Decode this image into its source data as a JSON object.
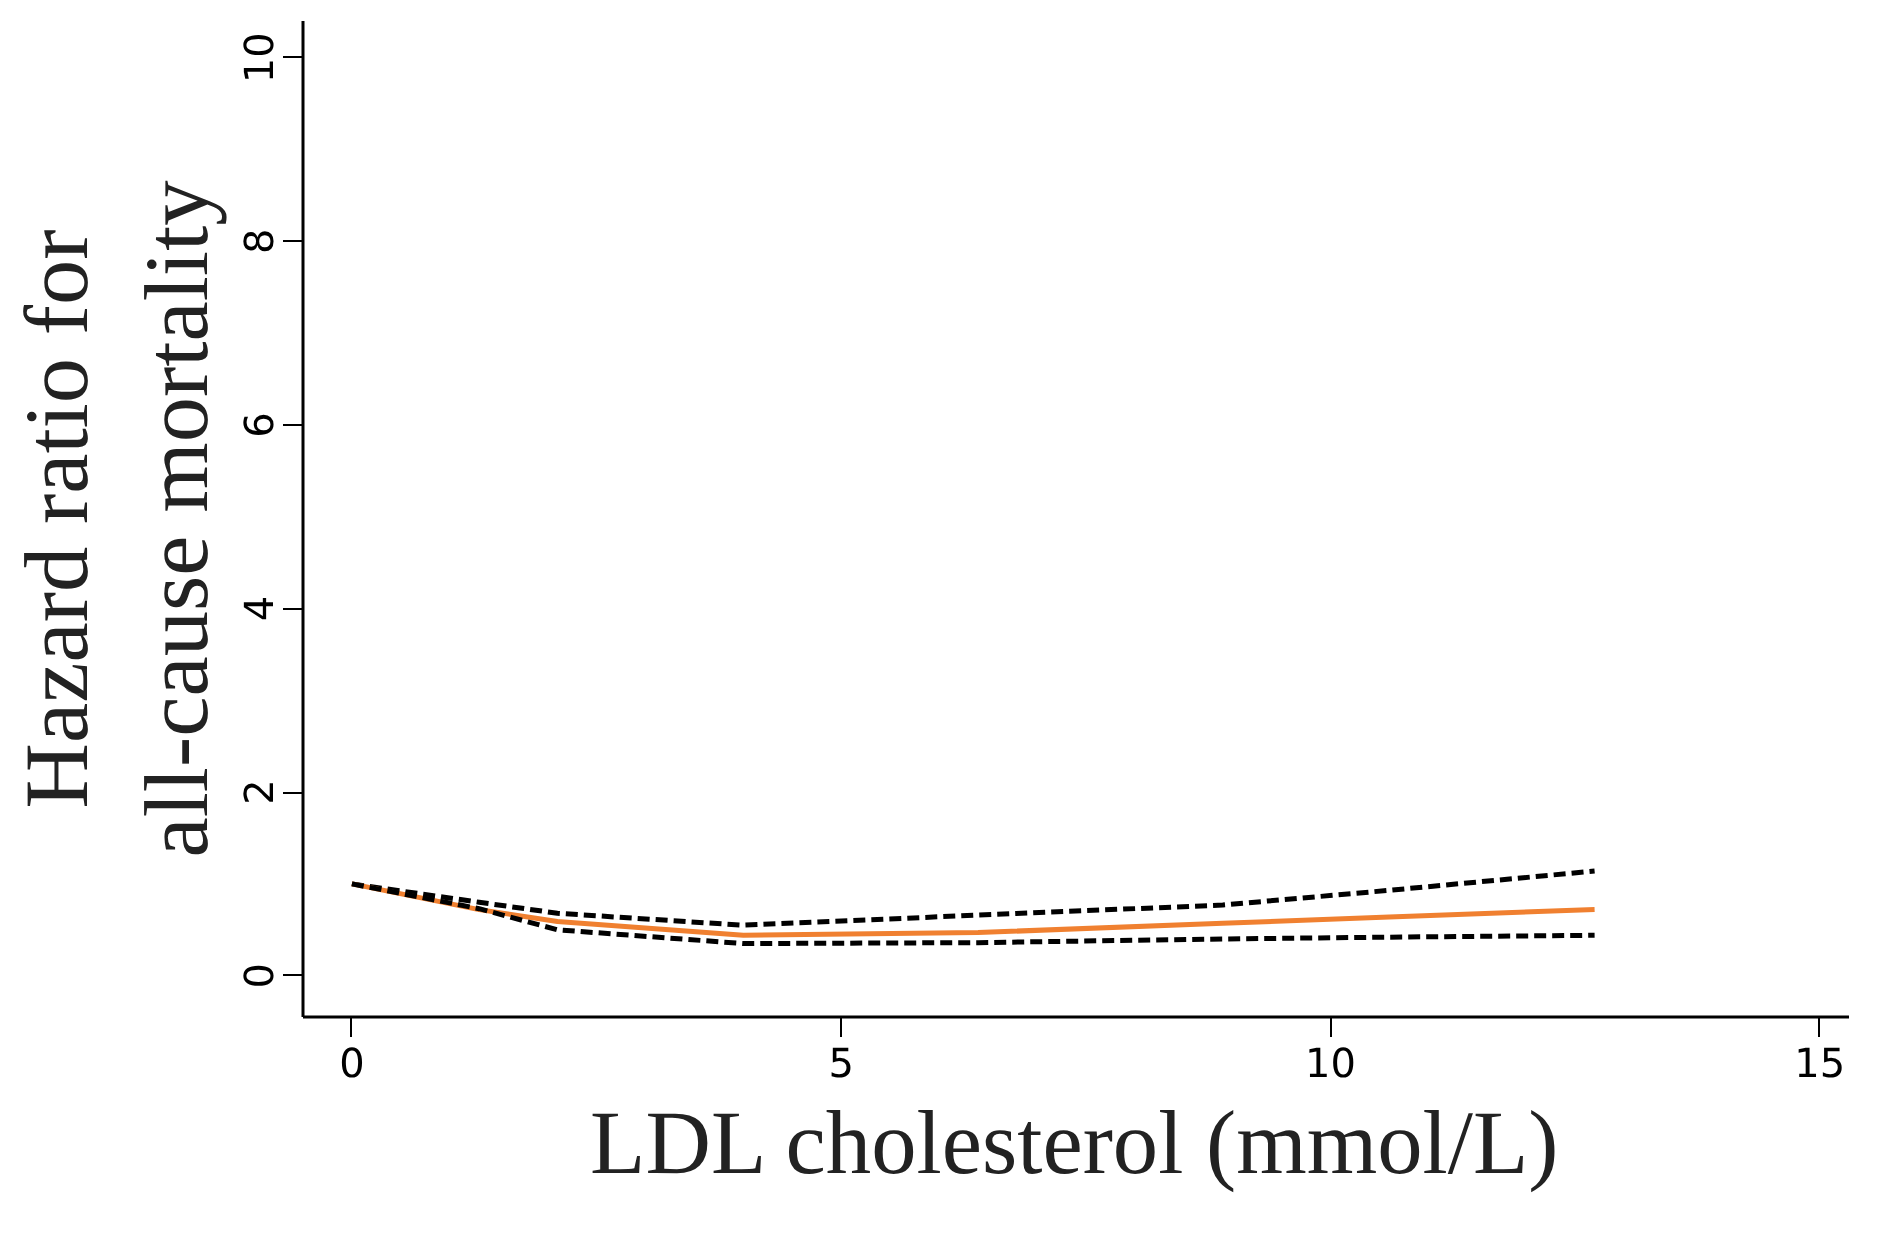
{
  "chart_data": {
    "type": "line",
    "xlabel": "LDL cholesterol (mmol/L)",
    "ylabel": "Hazard ratio for\nall-cause mortality",
    "xlim": [
      -0.5,
      15.3
    ],
    "ylim": [
      -0.45,
      10.4
    ],
    "xticks": [
      0,
      5,
      10,
      15
    ],
    "yticks": [
      0,
      2,
      4,
      6,
      8,
      10
    ],
    "grid": false,
    "marker": "none",
    "series": [
      {
        "color": "#000000",
        "line_style": "dashed",
        "x": [
          0,
          1.3,
          2.1,
          4.0,
          6.4,
          8.9,
          10.6,
          12.7
        ],
        "values": [
          1,
          0.8,
          0.68,
          0.55,
          0.66,
          0.77,
          0.93,
          1.14
        ]
      },
      {
        "color": "#f08030",
        "line_style": "solid",
        "x": [
          0,
          1.3,
          2.1,
          4.0,
          6.4,
          8.9,
          10.6,
          12.7
        ],
        "values": [
          1,
          0.72,
          0.59,
          0.44,
          0.47,
          0.57,
          0.64,
          0.72
        ]
      },
      {
        "color": "#000000",
        "line_style": "dashed",
        "x": [
          0,
          1.3,
          2.1,
          4.0,
          6.4,
          8.9,
          10.6,
          12.7
        ],
        "values": [
          1,
          0.73,
          0.5,
          0.35,
          0.36,
          0.4,
          0.42,
          0.44
        ]
      }
    ]
  }
}
